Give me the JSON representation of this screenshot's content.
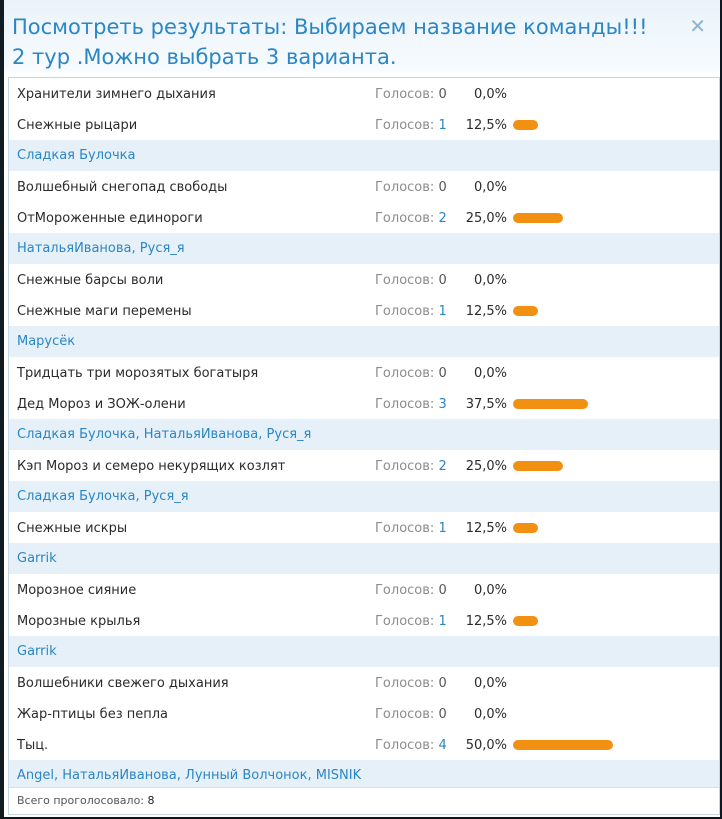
{
  "dialog": {
    "title": "Посмотреть результаты: Выбираем название команды!!! 2 тур .Можно выбрать 3 варианта.",
    "close_icon": "close-icon"
  },
  "votes_label": "Голосов:",
  "colors": {
    "accent": "#2a86c5",
    "bar": "#f29111",
    "voters_bg": "#e6f0f8"
  },
  "options": [
    {
      "name": "Хранители зимнего дыхания",
      "votes": "0",
      "percent": "0,0%",
      "fraction": 0,
      "voters": []
    },
    {
      "name": "Снежные рыцари",
      "votes": "1",
      "percent": "12,5%",
      "fraction": 0.125,
      "voters": [
        "Сладкая Булочка"
      ]
    },
    {
      "name": "Волшебный снегопад свободы",
      "votes": "0",
      "percent": "0,0%",
      "fraction": 0,
      "voters": []
    },
    {
      "name": "ОтМороженные единороги",
      "votes": "2",
      "percent": "25,0%",
      "fraction": 0.25,
      "voters": [
        "НатальяИванова",
        "Руся_я"
      ]
    },
    {
      "name": "Снежные барсы воли",
      "votes": "0",
      "percent": "0,0%",
      "fraction": 0,
      "voters": []
    },
    {
      "name": "Снежные маги перемены",
      "votes": "1",
      "percent": "12,5%",
      "fraction": 0.125,
      "voters": [
        "Марусёк"
      ]
    },
    {
      "name": "Тридцать три морозятых богатыря",
      "votes": "0",
      "percent": "0,0%",
      "fraction": 0,
      "voters": []
    },
    {
      "name": "Дед Мороз и ЗОЖ-олени",
      "votes": "3",
      "percent": "37,5%",
      "fraction": 0.375,
      "voters": [
        "Сладкая Булочка",
        "НатальяИванова",
        "Руся_я"
      ]
    },
    {
      "name": "Кэп Мороз и семеро некурящих козлят",
      "votes": "2",
      "percent": "25,0%",
      "fraction": 0.25,
      "voters": [
        "Сладкая Булочка",
        "Руся_я"
      ]
    },
    {
      "name": "Снежные искры",
      "votes": "1",
      "percent": "12,5%",
      "fraction": 0.125,
      "voters": [
        "Garrik"
      ]
    },
    {
      "name": "Морозное сияние",
      "votes": "0",
      "percent": "0,0%",
      "fraction": 0,
      "voters": []
    },
    {
      "name": "Морозные крылья",
      "votes": "1",
      "percent": "12,5%",
      "fraction": 0.125,
      "voters": [
        "Garrik"
      ]
    },
    {
      "name": "Волшебники свежего дыхания",
      "votes": "0",
      "percent": "0,0%",
      "fraction": 0,
      "voters": []
    },
    {
      "name": "Жар-птицы без пепла",
      "votes": "0",
      "percent": "0,0%",
      "fraction": 0,
      "voters": []
    },
    {
      "name": "Тыц.",
      "votes": "4",
      "percent": "50,0%",
      "fraction": 0.5,
      "voters": [
        "Angel",
        "НатальяИванова",
        "Лунный Волчонок",
        "MISNIK"
      ]
    }
  ],
  "footer": {
    "label": "Всего проголосовало:",
    "total": "8"
  }
}
